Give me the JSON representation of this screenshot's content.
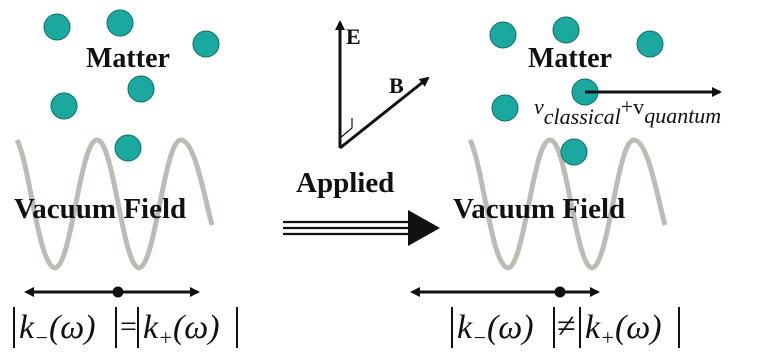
{
  "left": {
    "matter_label": "Matter",
    "field_label": "Vacuum Field",
    "relation": "="
  },
  "center": {
    "e_label": "E",
    "b_label": "B",
    "applied_label": "Applied"
  },
  "right": {
    "matter_label": "Matter",
    "field_label": "Vacuum Field",
    "relation": "≠",
    "v_classical": "v",
    "v_classical_sub": "classical",
    "v_plus": "+v",
    "v_quantum_sub": "quantum"
  },
  "formula": {
    "k": "k",
    "minus_sub": "−",
    "plus_sub": "+",
    "omega": "ω"
  },
  "colors": {
    "particle": "#1ba89f",
    "particle_stroke": "#0d6e68",
    "wave": "#bfbbb2",
    "ink": "#111111"
  }
}
